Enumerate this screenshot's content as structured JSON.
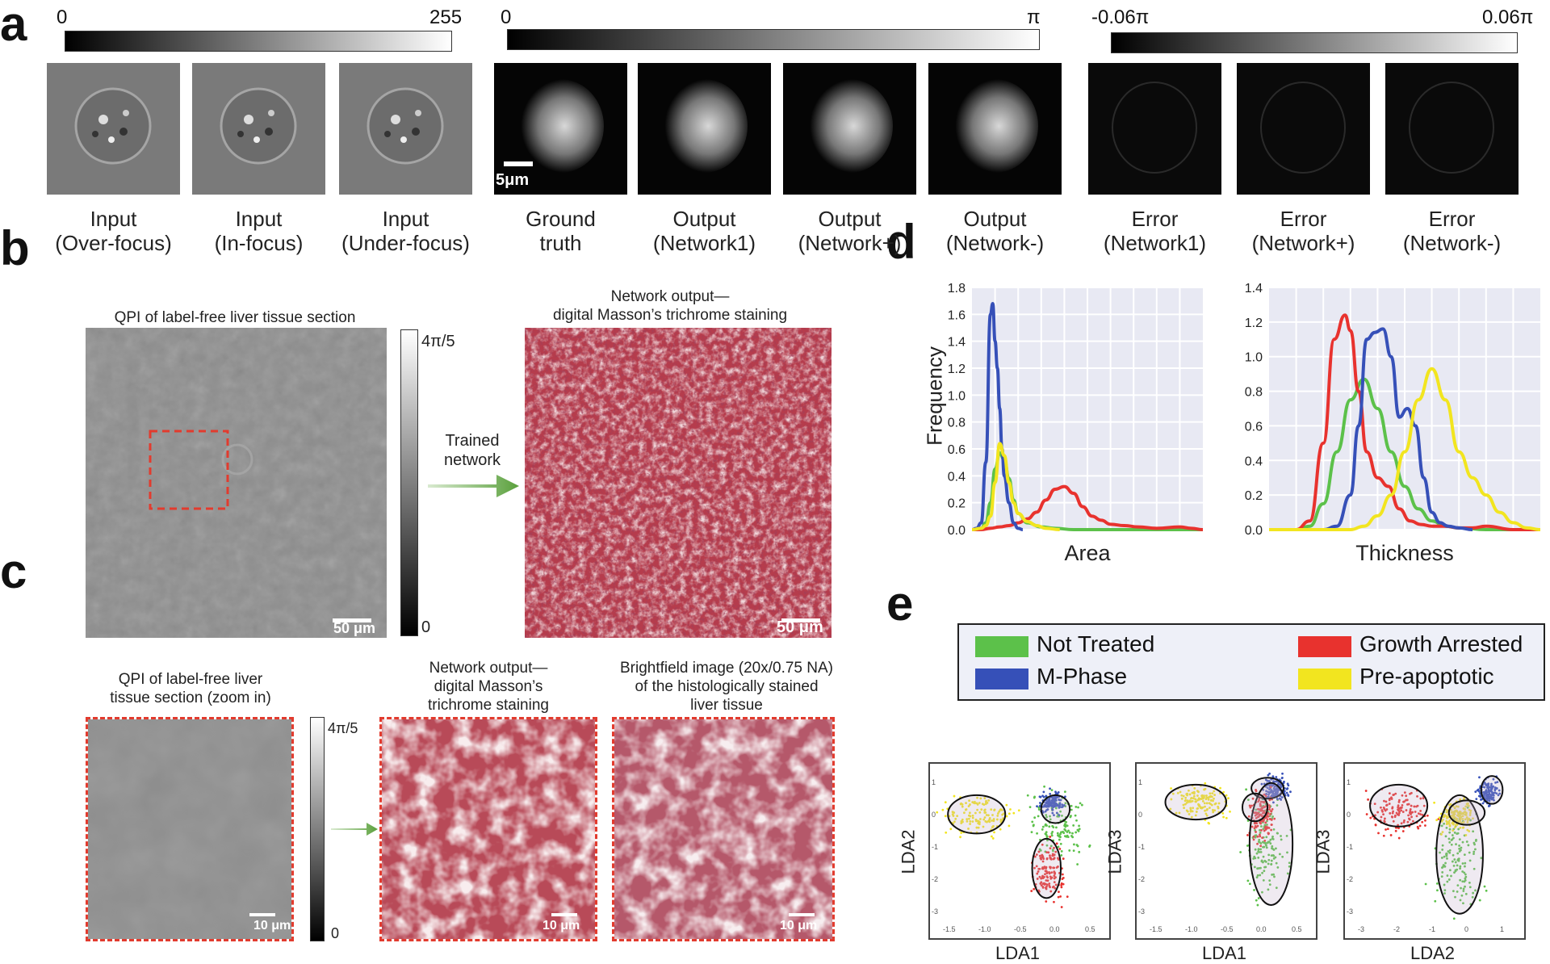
{
  "panel_labels": {
    "a": "a",
    "b": "b",
    "c": "c",
    "d": "d",
    "e": "e"
  },
  "panel_a": {
    "cbar1": {
      "min": "0",
      "max": "255"
    },
    "cbar2": {
      "min": "0",
      "max": "π"
    },
    "cbar3": {
      "min": "-0.06π",
      "max": "0.06π"
    },
    "scalebar": "5μm",
    "captions": [
      {
        "l1": "Input",
        "l2": "(Over-focus)"
      },
      {
        "l1": "Input",
        "l2": "(In-focus)"
      },
      {
        "l1": "Input",
        "l2": "(Under-focus)"
      },
      {
        "l1": "Ground",
        "l2": "truth"
      },
      {
        "l1": "Output",
        "l2": "(Network1)"
      },
      {
        "l1": "Output",
        "l2": "(Network+)"
      },
      {
        "l1": "Output",
        "l2": "(Network-)"
      },
      {
        "l1": "Error",
        "l2": "(Network1)"
      },
      {
        "l1": "Error",
        "l2": "(Network+)"
      },
      {
        "l1": "Error",
        "l2": "(Network-)"
      }
    ]
  },
  "panel_b": {
    "left_title": "QPI of label-free liver tissue section",
    "cbar_max": "4π/5",
    "cbar_min": "0",
    "arrow_l1": "Trained",
    "arrow_l2": "network",
    "right_title_l1": "Network output—",
    "right_title_l2": "digital Masson’s trichrome staining",
    "scalebar": "50 μm"
  },
  "panel_c": {
    "left_l1": "QPI of label-free liver",
    "left_l2": "tissue section (zoom in)",
    "cbar_max": "4π/5",
    "cbar_min": "0",
    "mid_l1": "Network output—",
    "mid_l2": "digital Masson’s",
    "mid_l3": "trichrome staining",
    "right_l1": "Brightfield image (20x/0.75 NA)",
    "right_l2": "of the histologically stained",
    "right_l3": "liver tissue",
    "scalebar": "10 μm"
  },
  "panel_d": {
    "ylabel": "Frequency",
    "legend": [
      {
        "name": "Not Treated",
        "color": "#5cc14a"
      },
      {
        "name": "Growth Arrested",
        "color": "#e8322e"
      },
      {
        "name": "M-Phase",
        "color": "#3650b8"
      },
      {
        "name": "Pre-apoptotic",
        "color": "#f2e51f"
      }
    ]
  },
  "panel_e": {
    "plots": [
      {
        "xlabel": "LDA1",
        "ylabel": "LDA2",
        "xticks": [
          "-1.5",
          "-1.0",
          "-0.5",
          "0.0",
          "0.5"
        ],
        "yticks": [
          "1",
          "0",
          "-1",
          "-2",
          "-3"
        ]
      },
      {
        "xlabel": "LDA1",
        "ylabel": "LDA3",
        "xticks": [
          "-1.5",
          "-1.0",
          "-0.5",
          "0.0",
          "0.5"
        ],
        "yticks": [
          "1",
          "0",
          "-1",
          "-2",
          "-3"
        ]
      },
      {
        "xlabel": "LDA2",
        "ylabel": "LDA3",
        "xticks": [
          "-3",
          "-2",
          "-1",
          "0",
          "1"
        ],
        "yticks": [
          "1",
          "0",
          "-1",
          "-2",
          "-3"
        ]
      }
    ]
  },
  "chart_data": [
    {
      "type": "line",
      "xlabel": "Area",
      "ylabel": "Frequency",
      "ylim": [
        0,
        1.8
      ],
      "yticks": [
        "0.0",
        "0.2",
        "0.4",
        "0.6",
        "0.8",
        "1.0",
        "1.2",
        "1.4",
        "1.6",
        "1.8"
      ],
      "grid": true,
      "series": [
        {
          "name": "Not Treated",
          "color": "#5cc14a",
          "x": [
            0,
            0.2,
            0.4,
            0.6,
            0.8,
            1,
            1.2,
            1.4,
            1.6,
            1.8,
            2,
            2.4,
            3,
            3.6,
            4.4,
            5.2,
            6,
            7,
            8,
            9,
            10
          ],
          "values": [
            0,
            0,
            0.01,
            0.05,
            0.2,
            0.45,
            0.57,
            0.52,
            0.38,
            0.22,
            0.12,
            0.05,
            0.02,
            0.01,
            0,
            0,
            0,
            0,
            0,
            0,
            0
          ]
        },
        {
          "name": "Growth Arrested",
          "color": "#e8322e",
          "x": [
            0,
            0.4,
            0.8,
            1.2,
            1.6,
            2,
            2.4,
            2.8,
            3.2,
            3.6,
            4,
            4.4,
            4.8,
            5.2,
            5.6,
            6,
            6.6,
            7.2,
            8,
            9,
            9.5,
            10
          ],
          "values": [
            0,
            0,
            0.01,
            0.02,
            0.03,
            0.05,
            0.08,
            0.13,
            0.22,
            0.3,
            0.32,
            0.27,
            0.17,
            0.1,
            0.07,
            0.04,
            0.03,
            0.02,
            0.01,
            0.02,
            0.01,
            0
          ]
        },
        {
          "name": "M-Phase",
          "color": "#3650b8",
          "x": [
            0,
            0.2,
            0.4,
            0.6,
            0.8,
            0.9,
            1,
            1.1,
            1.2,
            1.3,
            1.4,
            1.6,
            1.8,
            2,
            2.2
          ],
          "values": [
            0,
            0.01,
            0.05,
            0.5,
            1.6,
            1.68,
            1.4,
            1.2,
            0.9,
            0.6,
            0.4,
            0.2,
            0.05,
            0.01,
            0
          ]
        },
        {
          "name": "Pre-apoptotic",
          "color": "#f2e51f",
          "x": [
            0,
            0.4,
            0.6,
            0.8,
            1,
            1.2,
            1.4,
            1.6,
            1.8,
            2,
            2.4,
            2.8,
            3.2,
            3.8
          ],
          "values": [
            0,
            0.01,
            0.03,
            0.1,
            0.35,
            0.64,
            0.55,
            0.35,
            0.2,
            0.12,
            0.06,
            0.03,
            0.01,
            0
          ]
        }
      ]
    },
    {
      "type": "line",
      "xlabel": "Thickness",
      "ylabel": "",
      "ylim": [
        0,
        1.4
      ],
      "yticks": [
        "0.0",
        "0.2",
        "0.4",
        "0.6",
        "0.8",
        "1.0",
        "1.2",
        "1.4"
      ],
      "grid": true,
      "series": [
        {
          "name": "Not Treated",
          "color": "#5cc14a",
          "x": [
            0,
            1,
            1.5,
            2,
            2.5,
            3,
            3.5,
            4,
            4.5,
            5,
            5.5,
            6,
            6.5,
            7,
            8,
            9,
            10
          ],
          "values": [
            0,
            0,
            0.02,
            0.15,
            0.45,
            0.75,
            0.87,
            0.7,
            0.45,
            0.25,
            0.12,
            0.05,
            0.02,
            0.01,
            0,
            0,
            0
          ]
        },
        {
          "name": "Growth Arrested",
          "color": "#e8322e",
          "x": [
            0,
            1,
            1.5,
            2,
            2.4,
            2.8,
            3,
            3.3,
            3.6,
            4,
            4.4,
            4.8,
            5.2,
            5.6,
            6,
            6.5,
            7,
            7.5,
            8,
            9,
            10
          ],
          "values": [
            0,
            0,
            0.05,
            0.5,
            1.1,
            1.24,
            1.15,
            0.8,
            0.45,
            0.3,
            0.25,
            0.12,
            0.05,
            0.03,
            0.02,
            0.02,
            0.01,
            0.01,
            0.02,
            0,
            0
          ]
        },
        {
          "name": "M-Phase",
          "color": "#3650b8",
          "x": [
            0,
            2,
            2.5,
            3,
            3.3,
            3.6,
            3.9,
            4.2,
            4.5,
            4.8,
            5.1,
            5.4,
            5.7,
            6,
            6.3,
            6.6,
            7,
            7.5
          ],
          "values": [
            0,
            0,
            0.02,
            0.2,
            0.6,
            1.1,
            1.14,
            1.16,
            1.0,
            0.65,
            0.7,
            0.6,
            0.3,
            0.1,
            0.04,
            0.02,
            0.01,
            0
          ]
        },
        {
          "name": "Pre-apoptotic",
          "color": "#f2e51f",
          "x": [
            0,
            3,
            3.5,
            4,
            4.5,
            5,
            5.5,
            6,
            6.5,
            7,
            7.5,
            8,
            8.5,
            9,
            9.5,
            10
          ],
          "values": [
            0,
            0,
            0.02,
            0.08,
            0.2,
            0.45,
            0.75,
            0.93,
            0.75,
            0.45,
            0.3,
            0.2,
            0.1,
            0.04,
            0.01,
            0
          ]
        }
      ]
    }
  ]
}
